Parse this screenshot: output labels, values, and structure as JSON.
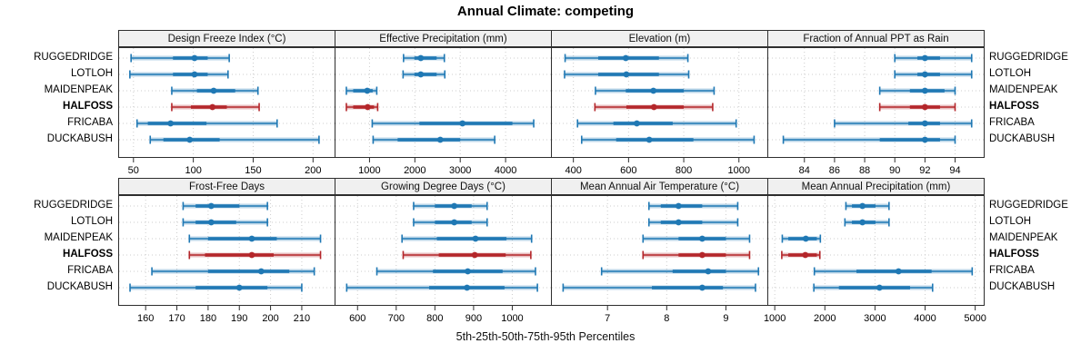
{
  "title": "Annual Climate: competing",
  "footer": "5th-25th-50th-75th-95th Percentiles",
  "sites": [
    "RUGGEDRIDGE",
    "LOTLOH",
    "MAIDENPEAK",
    "HALFOSS",
    "FRICABA",
    "DUCKABUSH"
  ],
  "highlight_site": "HALFOSS",
  "colors": {
    "normal": "#1f78b4",
    "normal_band": "rgba(31,120,180,0.30)",
    "highlight": "#b4262a",
    "highlight_band": "rgba(180,38,42,0.30)",
    "grid": "#cdcdcd",
    "strip_bg": "#f0f0f0",
    "panel_border": "#2e2e2e",
    "tick": "#2e2e2e"
  },
  "chart_data": [
    {
      "type": "interval-dot",
      "title": "Design Freeze Index (°C)",
      "xlim": [
        38,
        218
      ],
      "ticks": [
        50,
        100,
        150,
        200
      ],
      "series": [
        {
          "site": "RUGGEDRIDGE",
          "p5": 48,
          "p25": 83,
          "p50": 101,
          "p75": 112,
          "p95": 130
        },
        {
          "site": "LOTLOH",
          "p5": 47,
          "p25": 83,
          "p50": 101,
          "p75": 112,
          "p95": 129
        },
        {
          "site": "MAIDENPEAK",
          "p5": 82,
          "p25": 103,
          "p50": 117,
          "p75": 135,
          "p95": 154
        },
        {
          "site": "HALFOSS",
          "p5": 82,
          "p25": 98,
          "p50": 116,
          "p75": 128,
          "p95": 155
        },
        {
          "site": "FRICABA",
          "p5": 53,
          "p25": 62,
          "p50": 81,
          "p75": 111,
          "p95": 170
        },
        {
          "site": "DUCKABUSH",
          "p5": 64,
          "p25": 75,
          "p50": 97,
          "p75": 122,
          "p95": 205
        }
      ]
    },
    {
      "type": "interval-dot",
      "title": "Effective Precipitation (mm)",
      "xlim": [
        250,
        5000
      ],
      "ticks": [
        1000,
        2000,
        3000,
        4000
      ],
      "series": [
        {
          "site": "RUGGEDRIDGE",
          "p5": 1750,
          "p25": 1990,
          "p50": 2130,
          "p75": 2480,
          "p95": 2650
        },
        {
          "site": "LOTLOH",
          "p5": 1740,
          "p25": 1990,
          "p50": 2130,
          "p75": 2480,
          "p95": 2660
        },
        {
          "site": "MAIDENPEAK",
          "p5": 490,
          "p25": 640,
          "p50": 950,
          "p75": 1070,
          "p95": 1160
        },
        {
          "site": "HALFOSS",
          "p5": 490,
          "p25": 640,
          "p50": 960,
          "p75": 1100,
          "p95": 1180
        },
        {
          "site": "FRICABA",
          "p5": 1060,
          "p25": 2100,
          "p50": 3050,
          "p75": 4150,
          "p95": 4620
        },
        {
          "site": "DUCKABUSH",
          "p5": 1080,
          "p25": 1620,
          "p50": 2560,
          "p75": 3000,
          "p95": 3760
        }
      ]
    },
    {
      "type": "interval-dot",
      "title": "Elevation (m)",
      "xlim": [
        322,
        1103
      ],
      "ticks": [
        400,
        600,
        800,
        1000
      ],
      "series": [
        {
          "site": "RUGGEDRIDGE",
          "p5": 370,
          "p25": 490,
          "p50": 590,
          "p75": 710,
          "p95": 815
        },
        {
          "site": "LOTLOH",
          "p5": 368,
          "p25": 490,
          "p50": 592,
          "p75": 710,
          "p95": 818
        },
        {
          "site": "MAIDENPEAK",
          "p5": 480,
          "p25": 590,
          "p50": 690,
          "p75": 800,
          "p95": 910
        },
        {
          "site": "HALFOSS",
          "p5": 478,
          "p25": 592,
          "p50": 692,
          "p75": 800,
          "p95": 905
        },
        {
          "site": "FRICABA",
          "p5": 415,
          "p25": 545,
          "p50": 630,
          "p75": 760,
          "p95": 990
        },
        {
          "site": "DUCKABUSH",
          "p5": 430,
          "p25": 555,
          "p50": 675,
          "p75": 835,
          "p95": 1055
        }
      ]
    },
    {
      "type": "interval-dot",
      "title": "Fraction of Annual PPT as Rain",
      "xlim": [
        81.6,
        95.9
      ],
      "ticks": [
        84,
        86,
        88,
        90,
        92,
        94
      ],
      "series": [
        {
          "site": "RUGGEDRIDGE",
          "p5": 90,
          "p25": 91.5,
          "p50": 92,
          "p75": 93,
          "p95": 95.1
        },
        {
          "site": "LOTLOH",
          "p5": 90,
          "p25": 91.5,
          "p50": 92,
          "p75": 93,
          "p95": 95.1
        },
        {
          "site": "MAIDENPEAK",
          "p5": 89,
          "p25": 91,
          "p50": 92,
          "p75": 93.3,
          "p95": 94
        },
        {
          "site": "HALFOSS",
          "p5": 89,
          "p25": 91,
          "p50": 92,
          "p75": 93,
          "p95": 94
        },
        {
          "site": "FRICABA",
          "p5": 86,
          "p25": 90.9,
          "p50": 92,
          "p75": 93,
          "p95": 95.1
        },
        {
          "site": "DUCKABUSH",
          "p5": 82.6,
          "p25": 89,
          "p50": 92,
          "p75": 93,
          "p95": 94
        }
      ]
    },
    {
      "type": "interval-dot",
      "title": "Frost-Free Days",
      "xlim": [
        151.5,
        220.5
      ],
      "ticks": [
        160,
        170,
        180,
        190,
        200,
        210
      ],
      "series": [
        {
          "site": "RUGGEDRIDGE",
          "p5": 172,
          "p25": 176,
          "p50": 181,
          "p75": 190,
          "p95": 199
        },
        {
          "site": "LOTLOH",
          "p5": 172,
          "p25": 176,
          "p50": 181,
          "p75": 189,
          "p95": 199
        },
        {
          "site": "MAIDENPEAK",
          "p5": 174,
          "p25": 180,
          "p50": 194,
          "p75": 202,
          "p95": 216
        },
        {
          "site": "HALFOSS",
          "p5": 174,
          "p25": 179,
          "p50": 194,
          "p75": 201,
          "p95": 216
        },
        {
          "site": "FRICABA",
          "p5": 162,
          "p25": 180,
          "p50": 197,
          "p75": 206,
          "p95": 214
        },
        {
          "site": "DUCKABUSH",
          "p5": 155,
          "p25": 176,
          "p50": 190,
          "p75": 199,
          "p95": 210
        }
      ]
    },
    {
      "type": "interval-dot",
      "title": "Growing Degree Days (°C)",
      "xlim": [
        543,
        1100
      ],
      "ticks": [
        600,
        700,
        800,
        900,
        1000
      ],
      "series": [
        {
          "site": "RUGGEDRIDGE",
          "p5": 745,
          "p25": 800,
          "p50": 850,
          "p75": 895,
          "p95": 935
        },
        {
          "site": "LOTLOH",
          "p5": 745,
          "p25": 800,
          "p50": 850,
          "p75": 895,
          "p95": 935
        },
        {
          "site": "MAIDENPEAK",
          "p5": 715,
          "p25": 805,
          "p50": 905,
          "p75": 985,
          "p95": 1050
        },
        {
          "site": "HALFOSS",
          "p5": 718,
          "p25": 810,
          "p50": 903,
          "p75": 983,
          "p95": 1048
        },
        {
          "site": "FRICABA",
          "p5": 650,
          "p25": 795,
          "p50": 885,
          "p75": 975,
          "p95": 1060
        },
        {
          "site": "DUCKABUSH",
          "p5": 572,
          "p25": 785,
          "p50": 883,
          "p75": 980,
          "p95": 1065
        }
      ]
    },
    {
      "type": "interval-dot",
      "title": "Mean Annual Air Temperature (°C)",
      "xlim": [
        6.06,
        9.7
      ],
      "ticks": [
        7,
        8,
        9
      ],
      "series": [
        {
          "site": "RUGGEDRIDGE",
          "p5": 7.7,
          "p25": 7.9,
          "p50": 8.2,
          "p75": 8.6,
          "p95": 9.2
        },
        {
          "site": "LOTLOH",
          "p5": 7.7,
          "p25": 7.9,
          "p50": 8.2,
          "p75": 8.6,
          "p95": 9.2
        },
        {
          "site": "MAIDENPEAK",
          "p5": 7.6,
          "p25": 8.2,
          "p50": 8.6,
          "p75": 9.0,
          "p95": 9.4
        },
        {
          "site": "HALFOSS",
          "p5": 7.6,
          "p25": 8.2,
          "p50": 8.6,
          "p75": 9.0,
          "p95": 9.4
        },
        {
          "site": "FRICABA",
          "p5": 6.9,
          "p25": 8.1,
          "p50": 8.7,
          "p75": 9.0,
          "p95": 9.55
        },
        {
          "site": "DUCKABUSH",
          "p5": 6.25,
          "p25": 7.75,
          "p50": 8.6,
          "p75": 8.95,
          "p95": 9.5
        }
      ]
    },
    {
      "type": "interval-dot",
      "title": "Mean Annual Precipitation (mm)",
      "xlim": [
        870,
        5170
      ],
      "ticks": [
        1000,
        2000,
        3000,
        4000,
        5000
      ],
      "series": [
        {
          "site": "RUGGEDRIDGE",
          "p5": 2420,
          "p25": 2540,
          "p50": 2750,
          "p75": 3010,
          "p95": 3280
        },
        {
          "site": "LOTLOH",
          "p5": 2400,
          "p25": 2540,
          "p50": 2750,
          "p75": 3010,
          "p95": 3280
        },
        {
          "site": "MAIDENPEAK",
          "p5": 1150,
          "p25": 1270,
          "p50": 1620,
          "p75": 1840,
          "p95": 1910
        },
        {
          "site": "HALFOSS",
          "p5": 1140,
          "p25": 1270,
          "p50": 1610,
          "p75": 1840,
          "p95": 1900
        },
        {
          "site": "FRICABA",
          "p5": 1790,
          "p25": 2630,
          "p50": 3470,
          "p75": 4130,
          "p95": 4940
        },
        {
          "site": "DUCKABUSH",
          "p5": 1780,
          "p25": 2280,
          "p50": 3090,
          "p75": 3700,
          "p95": 4150
        }
      ]
    }
  ]
}
